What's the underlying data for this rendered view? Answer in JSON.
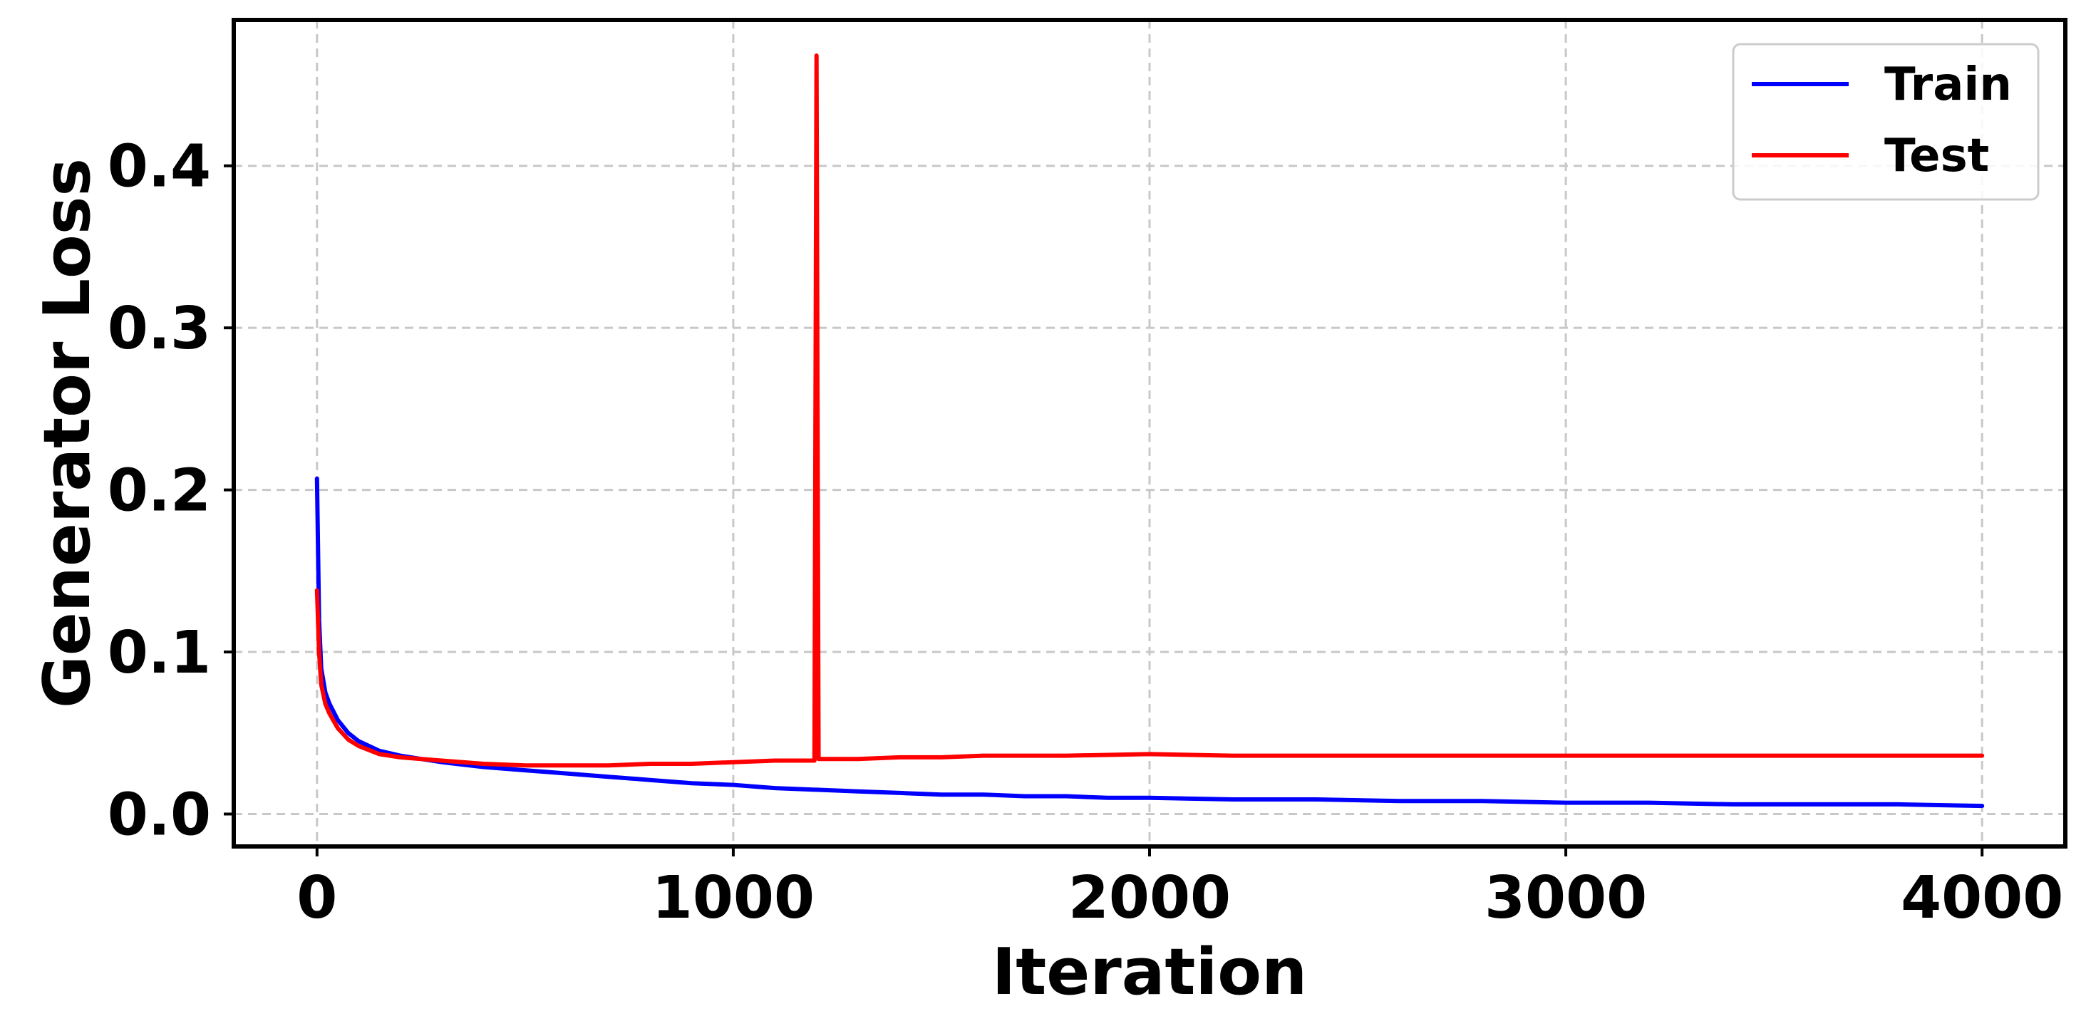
{
  "chart_data": {
    "type": "line",
    "title": "",
    "xlabel": "Iteration",
    "ylabel": "Generator Loss",
    "xlim": [
      -200,
      4200
    ],
    "ylim": [
      -0.02,
      0.49
    ],
    "x_ticks": [
      0,
      1000,
      2000,
      3000,
      4000
    ],
    "x_tick_labels": [
      "0",
      "1000",
      "2000",
      "3000",
      "4000"
    ],
    "y_ticks": [
      0.0,
      0.1,
      0.2,
      0.3,
      0.4
    ],
    "y_tick_labels": [
      "0.0",
      "0.1",
      "0.2",
      "0.3",
      "0.4"
    ],
    "grid": true,
    "legend_position": "top-right",
    "series": [
      {
        "name": "Train",
        "color": "#0000ff",
        "x": [
          0,
          5,
          10,
          20,
          30,
          50,
          75,
          100,
          150,
          200,
          250,
          300,
          400,
          500,
          600,
          700,
          800,
          900,
          1000,
          1100,
          1200,
          1300,
          1400,
          1500,
          1600,
          1700,
          1800,
          1900,
          2000,
          2200,
          2400,
          2600,
          2800,
          3000,
          3200,
          3400,
          3600,
          3800,
          4000
        ],
        "y": [
          0.207,
          0.12,
          0.09,
          0.075,
          0.068,
          0.058,
          0.05,
          0.045,
          0.039,
          0.036,
          0.034,
          0.032,
          0.029,
          0.027,
          0.025,
          0.023,
          0.021,
          0.019,
          0.018,
          0.016,
          0.015,
          0.014,
          0.013,
          0.012,
          0.012,
          0.011,
          0.011,
          0.01,
          0.01,
          0.009,
          0.009,
          0.008,
          0.008,
          0.007,
          0.007,
          0.006,
          0.006,
          0.006,
          0.005
        ]
      },
      {
        "name": "Test",
        "color": "#ff0000",
        "x": [
          0,
          5,
          10,
          20,
          30,
          50,
          75,
          100,
          150,
          200,
          250,
          300,
          400,
          500,
          600,
          700,
          800,
          900,
          1000,
          1100,
          1195,
          1200,
          1205,
          1300,
          1400,
          1500,
          1600,
          1800,
          2000,
          2200,
          2400,
          2600,
          2800,
          3000,
          3200,
          3400,
          3600,
          3800,
          4000
        ],
        "y": [
          0.138,
          0.1,
          0.08,
          0.068,
          0.062,
          0.053,
          0.046,
          0.042,
          0.037,
          0.035,
          0.034,
          0.033,
          0.031,
          0.03,
          0.03,
          0.03,
          0.031,
          0.031,
          0.032,
          0.033,
          0.033,
          0.468,
          0.034,
          0.034,
          0.035,
          0.035,
          0.036,
          0.036,
          0.037,
          0.036,
          0.036,
          0.036,
          0.036,
          0.036,
          0.036,
          0.036,
          0.036,
          0.036,
          0.036
        ]
      }
    ]
  }
}
